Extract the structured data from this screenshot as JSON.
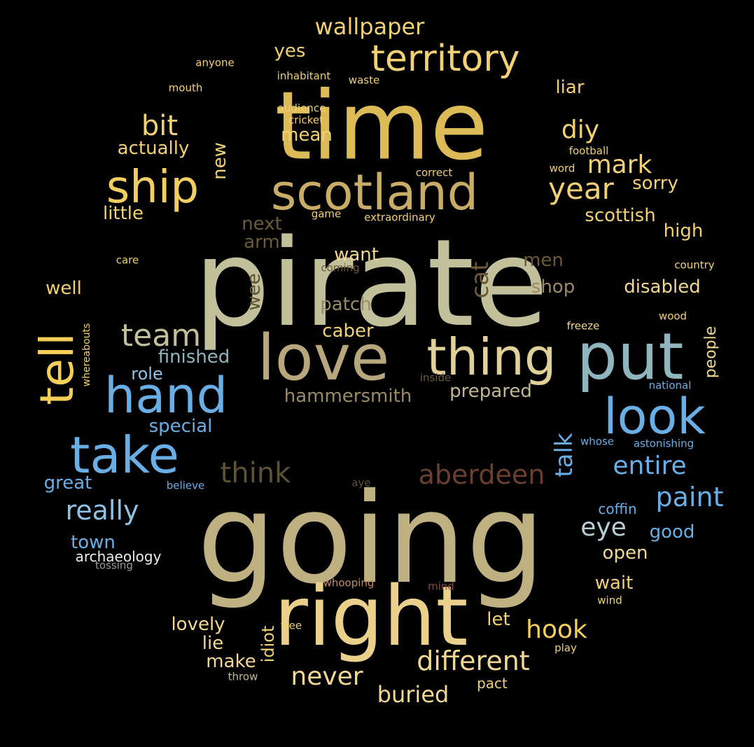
{
  "words": [
    {
      "text": "pirate",
      "color": "#c2c09a"
    },
    {
      "text": "going",
      "color": "#bfb081"
    },
    {
      "text": "time",
      "color": "#dcbb57"
    },
    {
      "text": "right",
      "color": "#ead08a"
    },
    {
      "text": "love",
      "color": "#b8a67c"
    },
    {
      "text": "put",
      "color": "#8fb5be"
    },
    {
      "text": "thing",
      "color": "#e0d09a"
    },
    {
      "text": "scotland",
      "color": "#c9ac66"
    },
    {
      "text": "ship",
      "color": "#f3cf5f"
    },
    {
      "text": "territory",
      "color": "#f2d074"
    },
    {
      "text": "hand",
      "color": "#6aaee6"
    },
    {
      "text": "take",
      "color": "#6aaee6"
    },
    {
      "text": "look",
      "color": "#6aaee6"
    },
    {
      "text": "tell",
      "color": "#f5cf5a"
    },
    {
      "text": "different",
      "color": "#f2d890"
    },
    {
      "text": "aberdeen",
      "color": "#6b3f30"
    },
    {
      "text": "think",
      "color": "#5c5236"
    },
    {
      "text": "paint",
      "color": "#6aaee6"
    },
    {
      "text": "team",
      "color": "#c2c09a"
    },
    {
      "text": "year",
      "color": "#f2d074"
    },
    {
      "text": "mark",
      "color": "#f2d074"
    },
    {
      "text": "diy",
      "color": "#f2d074"
    },
    {
      "text": "bit",
      "color": "#f2d074"
    },
    {
      "text": "entire",
      "color": "#6aaee6"
    },
    {
      "text": "really",
      "color": "#8fc2e6"
    },
    {
      "text": "never",
      "color": "#f2d890"
    },
    {
      "text": "hook",
      "color": "#f5cf5a"
    },
    {
      "text": "wallpaper",
      "color": "#f2d074"
    },
    {
      "text": "buried",
      "color": "#f2d890"
    },
    {
      "text": "eye",
      "color": "#b7cfd3"
    },
    {
      "text": "cat",
      "color": "#6b5a38"
    },
    {
      "text": "talk",
      "color": "#6aaee6"
    },
    {
      "text": "finished",
      "color": "#8fb5be"
    },
    {
      "text": "hammersmith",
      "color": "#9a8a66"
    },
    {
      "text": "prepared",
      "color": "#c2b890"
    },
    {
      "text": "special",
      "color": "#6aaee6"
    },
    {
      "text": "patch",
      "color": "#9a8a66"
    },
    {
      "text": "want",
      "color": "#f2d890"
    },
    {
      "text": "caber",
      "color": "#f2d074"
    },
    {
      "text": "disabled",
      "color": "#f2d890"
    },
    {
      "text": "scottish",
      "color": "#f2d074"
    },
    {
      "text": "sorry",
      "color": "#f2d074"
    },
    {
      "text": "high",
      "color": "#f2d074"
    },
    {
      "text": "shop",
      "color": "#9a8a66"
    },
    {
      "text": "men",
      "color": "#6b5a38"
    },
    {
      "text": "next",
      "color": "#6b5a38"
    },
    {
      "text": "arm",
      "color": "#6b5a38"
    },
    {
      "text": "wee",
      "color": "#5c5236"
    },
    {
      "text": "mean",
      "color": "#f2d074"
    },
    {
      "text": "actually",
      "color": "#f2d074"
    },
    {
      "text": "little",
      "color": "#f2d074"
    },
    {
      "text": "new",
      "color": "#f2d074"
    },
    {
      "text": "liar",
      "color": "#f2d074"
    },
    {
      "text": "yes",
      "color": "#f2d074"
    },
    {
      "text": "well",
      "color": "#f2d074"
    },
    {
      "text": "role",
      "color": "#8fc2e6"
    },
    {
      "text": "great",
      "color": "#6aaee6"
    },
    {
      "text": "town",
      "color": "#6aaee6"
    },
    {
      "text": "archaeology",
      "color": "#e6eef2"
    },
    {
      "text": "tossing",
      "color": "#9a9a9a"
    },
    {
      "text": "lovely",
      "color": "#f2d890"
    },
    {
      "text": "lie",
      "color": "#f2d890"
    },
    {
      "text": "make",
      "color": "#f2d890"
    },
    {
      "text": "idiot",
      "color": "#f2d074"
    },
    {
      "text": "throw",
      "color": "#c2b890"
    },
    {
      "text": "tree",
      "color": "#f2d074"
    },
    {
      "text": "let",
      "color": "#f2d074"
    },
    {
      "text": "pact",
      "color": "#f2d074"
    },
    {
      "text": "play",
      "color": "#f2d074"
    },
    {
      "text": "wind",
      "color": "#f2d074"
    },
    {
      "text": "wait",
      "color": "#f2d074"
    },
    {
      "text": "open",
      "color": "#f2d890"
    },
    {
      "text": "good",
      "color": "#6aaee6"
    },
    {
      "text": "coffin",
      "color": "#6aaee6"
    },
    {
      "text": "people",
      "color": "#f2d890"
    },
    {
      "text": "astonishing",
      "color": "#6aaee6"
    },
    {
      "text": "whose",
      "color": "#6aaee6"
    },
    {
      "text": "national",
      "color": "#6aaee6"
    },
    {
      "text": "wood",
      "color": "#f2d074"
    },
    {
      "text": "freeze",
      "color": "#f2d890"
    },
    {
      "text": "country",
      "color": "#f2d074"
    },
    {
      "text": "football",
      "color": "#f2d074"
    },
    {
      "text": "word",
      "color": "#f2d074"
    },
    {
      "text": "correct",
      "color": "#f2d074"
    },
    {
      "text": "extraordinary",
      "color": "#f2d074"
    },
    {
      "text": "game",
      "color": "#f2d074"
    },
    {
      "text": "coming",
      "color": "#6b5a38"
    },
    {
      "text": "care",
      "color": "#f2d074"
    },
    {
      "text": "whereabouts",
      "color": "#f2d074"
    },
    {
      "text": "inside",
      "color": "#6b5a38"
    },
    {
      "text": "believe",
      "color": "#6aaee6"
    },
    {
      "text": "aye",
      "color": "#5c5236"
    },
    {
      "text": "whooping",
      "color": "#c98a5a"
    },
    {
      "text": "mind",
      "color": "#8a4a3a"
    },
    {
      "text": "anyone",
      "color": "#f2d074"
    },
    {
      "text": "mouth",
      "color": "#f2d074"
    },
    {
      "text": "inhabitant",
      "color": "#f2d074"
    },
    {
      "text": "waste",
      "color": "#f2d074"
    },
    {
      "text": "audience",
      "color": "#f2d074"
    },
    {
      "text": "cricket",
      "color": "#f2d074"
    }
  ]
}
